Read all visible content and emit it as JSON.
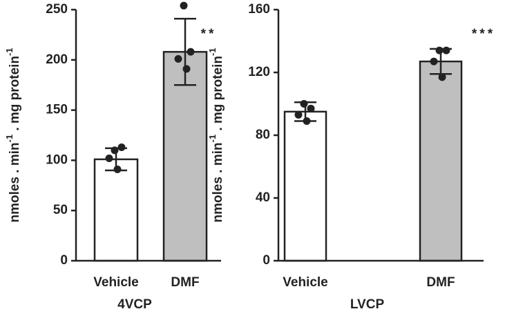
{
  "chart_data": [
    {
      "type": "bar",
      "categories": [
        "Vehicle",
        "DMF"
      ],
      "values": [
        101,
        208
      ],
      "errors": [
        11,
        33
      ],
      "points": [
        [
          110,
          113,
          102,
          91
        ],
        [
          254,
          208,
          201,
          191
        ]
      ],
      "colors": [
        "#ffffff",
        "#bfbfbf"
      ],
      "ylim": [
        0,
        250
      ],
      "yticks": [
        0,
        50,
        100,
        150,
        200,
        250
      ],
      "ylabel": [
        "nmoles . min",
        "-1",
        " . mg protein",
        "-1"
      ],
      "xlabel": "4VCP",
      "annotation": "**"
    },
    {
      "type": "bar",
      "categories": [
        "Vehicle",
        "DMF"
      ],
      "values": [
        95,
        127
      ],
      "errors": [
        6,
        8
      ],
      "points": [
        [
          100,
          97,
          93,
          89
        ],
        [
          134,
          134,
          127,
          117
        ]
      ],
      "colors": [
        "#ffffff",
        "#bfbfbf"
      ],
      "ylim": [
        0,
        160
      ],
      "yticks": [
        0,
        40,
        80,
        120,
        160
      ],
      "ylabel": [
        "nmoles . min",
        "-1",
        " . mg protein",
        "-1"
      ],
      "xlabel": "LVCP",
      "annotation": "***"
    }
  ]
}
